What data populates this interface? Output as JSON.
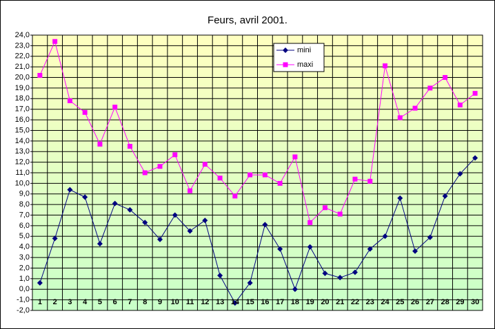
{
  "chart_data": {
    "type": "line",
    "title": "Feurs, avril 2001.",
    "categories": [
      "1",
      "2",
      "3",
      "4",
      "5",
      "6",
      "7",
      "8",
      "9",
      "10",
      "11",
      "12",
      "13",
      "14",
      "15",
      "16",
      "17",
      "18",
      "19",
      "20",
      "21",
      "22",
      "23",
      "24",
      "25",
      "26",
      "27",
      "28",
      "29",
      "30"
    ],
    "series": [
      {
        "name": "mini",
        "color": "#000080",
        "marker": "diamond",
        "values": [
          0.6,
          4.8,
          9.4,
          8.7,
          4.3,
          8.1,
          7.5,
          6.3,
          4.7,
          7.0,
          5.5,
          6.5,
          1.3,
          -1.3,
          0.6,
          6.1,
          3.8,
          0.0,
          4.0,
          1.5,
          1.1,
          1.6,
          3.8,
          5.0,
          8.6,
          3.6,
          4.9,
          8.8,
          10.9,
          12.4
        ]
      },
      {
        "name": "maxi",
        "color": "#ff00ff",
        "marker": "square",
        "values": [
          20.2,
          23.4,
          17.8,
          16.7,
          13.7,
          17.2,
          13.5,
          11.0,
          11.6,
          12.7,
          9.3,
          11.8,
          10.5,
          8.8,
          10.8,
          10.8,
          10.0,
          12.5,
          6.3,
          7.7,
          7.1,
          10.4,
          10.2,
          21.1,
          16.2,
          17.1,
          19.0,
          20.0,
          17.4,
          18.5
        ]
      }
    ],
    "ylim": [
      -2,
      24
    ],
    "yticks": [
      {
        "value": 24,
        "label": "24,0"
      },
      {
        "value": 23,
        "label": "23,0"
      },
      {
        "value": 22,
        "label": "22,0"
      },
      {
        "value": 21,
        "label": "21,0"
      },
      {
        "value": 20,
        "label": "20,0"
      },
      {
        "value": 19,
        "label": "19,0"
      },
      {
        "value": 18,
        "label": "18,0"
      },
      {
        "value": 17,
        "label": "17,0"
      },
      {
        "value": 16,
        "label": "16,0"
      },
      {
        "value": 15,
        "label": "15,0"
      },
      {
        "value": 14,
        "label": "14,0"
      },
      {
        "value": 13,
        "label": "13,0"
      },
      {
        "value": 12,
        "label": "12,0"
      },
      {
        "value": 11,
        "label": "11,0"
      },
      {
        "value": 10,
        "label": "10,0"
      },
      {
        "value": 9,
        "label": "9,0"
      },
      {
        "value": 8,
        "label": "8,0"
      },
      {
        "value": 7,
        "label": "7,0"
      },
      {
        "value": 6,
        "label": "6,0"
      },
      {
        "value": 5,
        "label": "5,0"
      },
      {
        "value": 4,
        "label": "4,0"
      },
      {
        "value": 3,
        "label": "3,0"
      },
      {
        "value": 2,
        "label": "2,0"
      },
      {
        "value": 1,
        "label": "1,0"
      },
      {
        "value": 0,
        "label": "0,0"
      },
      {
        "value": -1,
        "label": "-1,0"
      },
      {
        "value": -2,
        "label": "-2,0"
      }
    ],
    "grid": true
  }
}
